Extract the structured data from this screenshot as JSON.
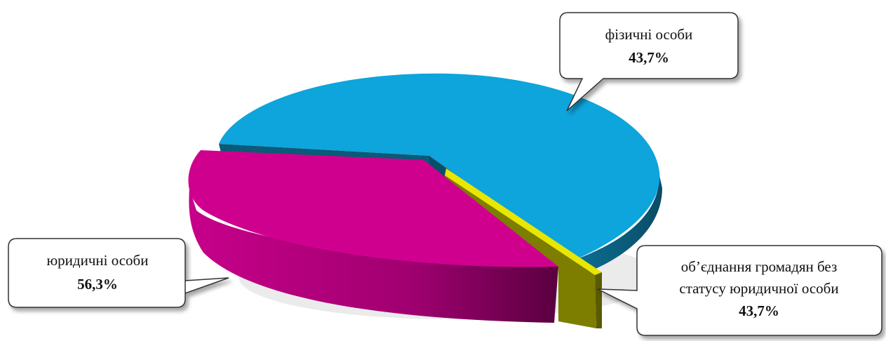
{
  "chart_data": {
    "type": "pie",
    "style": "3d-exploded",
    "slices": [
      {
        "label": "фізичні особи",
        "value_label": "43,7%",
        "value": 43.7,
        "color": "#0ea4dc",
        "side_color": "#0b5f7e"
      },
      {
        "label": "юридичні особи",
        "value_label": "56,3%",
        "value": 56.3,
        "color": "#d0008f",
        "side_color": "#8c0060"
      },
      {
        "label_lines": [
          "об’єднання громадян без",
          "статусу юридичної особи"
        ],
        "value_label": "43,7%",
        "value": 43.7,
        "color": "#e9e600",
        "side_color": "#7d7d00"
      }
    ]
  }
}
